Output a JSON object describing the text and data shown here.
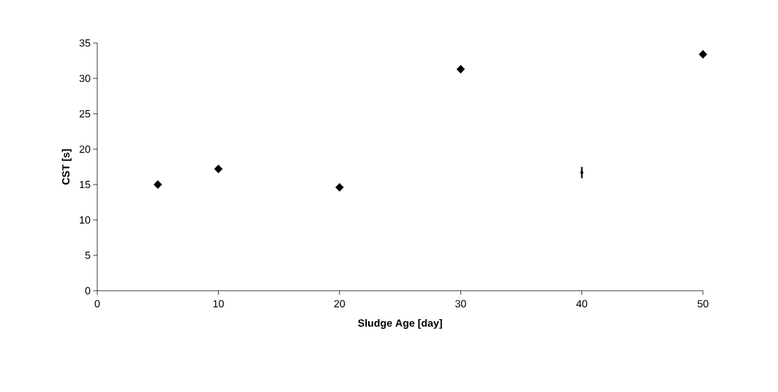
{
  "chart_data": {
    "type": "scatter",
    "xlabel": "Sludge Age [day]",
    "ylabel": "CST [s]",
    "xlim": [
      0,
      50
    ],
    "xticks": [
      0,
      10,
      20,
      30,
      40,
      50
    ],
    "ylim": [
      0,
      35
    ],
    "yticks": [
      0,
      5,
      10,
      15,
      20,
      25,
      30,
      35
    ],
    "grid": false,
    "series": [
      {
        "color": "#000000",
        "marker": "diamond",
        "x": [
          5,
          10,
          20,
          30,
          50
        ],
        "values": [
          15,
          17.2,
          14.6,
          31.3,
          33.4
        ]
      },
      {
        "color": "#000000",
        "marker": "none",
        "x": [
          40
        ],
        "values": [
          16.7
        ],
        "errors": [
          [
            15.9,
            17.5
          ]
        ]
      }
    ]
  }
}
